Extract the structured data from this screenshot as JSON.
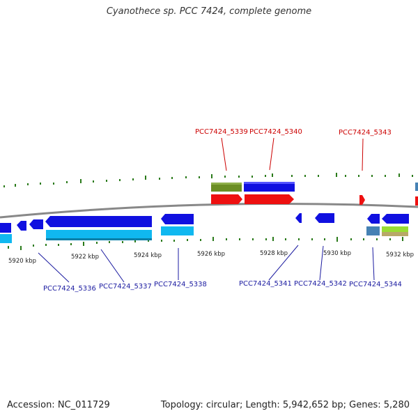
{
  "title": "Cyanothece sp. PCC 7424, complete genome",
  "footer": {
    "accession": "Accession: NC_011729",
    "summary": "Topology: circular; Length: 5,942,652 bp; Genes: 5,280"
  },
  "colors": {
    "backbone": "#8a8a8a",
    "tick": "#2a7a1a",
    "label_top": "#cc0000",
    "label_bottom": "#1a1aa0",
    "gene_blue": "#1010e0",
    "gene_cyan": "#10b8f0",
    "gene_red": "#ee1010",
    "gene_olive": "#6b8e23",
    "gene_steel": "#4682b4",
    "gene_lime": "#99dd33"
  },
  "axis": {
    "ticks": [
      "5920 kbp",
      "5922 kbp",
      "5924 kbp",
      "5926 kbp",
      "5928 kbp",
      "5930 kbp",
      "5932 kbp"
    ]
  },
  "genes_top": [
    {
      "id": "PCC7424_5339",
      "label": "PCC7424_5339"
    },
    {
      "id": "PCC7424_5340",
      "label": "PCC7424_5340"
    },
    {
      "id": "PCC7424_5343",
      "label": "PCC7424_5343"
    }
  ],
  "genes_bottom": [
    {
      "id": "PCC7424_5336",
      "label": "PCC7424_5336"
    },
    {
      "id": "PCC7424_5337",
      "label": "PCC7424_5337"
    },
    {
      "id": "PCC7424_5338",
      "label": "PCC7424_5338"
    },
    {
      "id": "PCC7424_5341",
      "label": "PCC7424_5341"
    },
    {
      "id": "PCC7424_5342",
      "label": "PCC7424_5342"
    },
    {
      "id": "PCC7424_5344",
      "label": "PCC7424_5344"
    }
  ]
}
